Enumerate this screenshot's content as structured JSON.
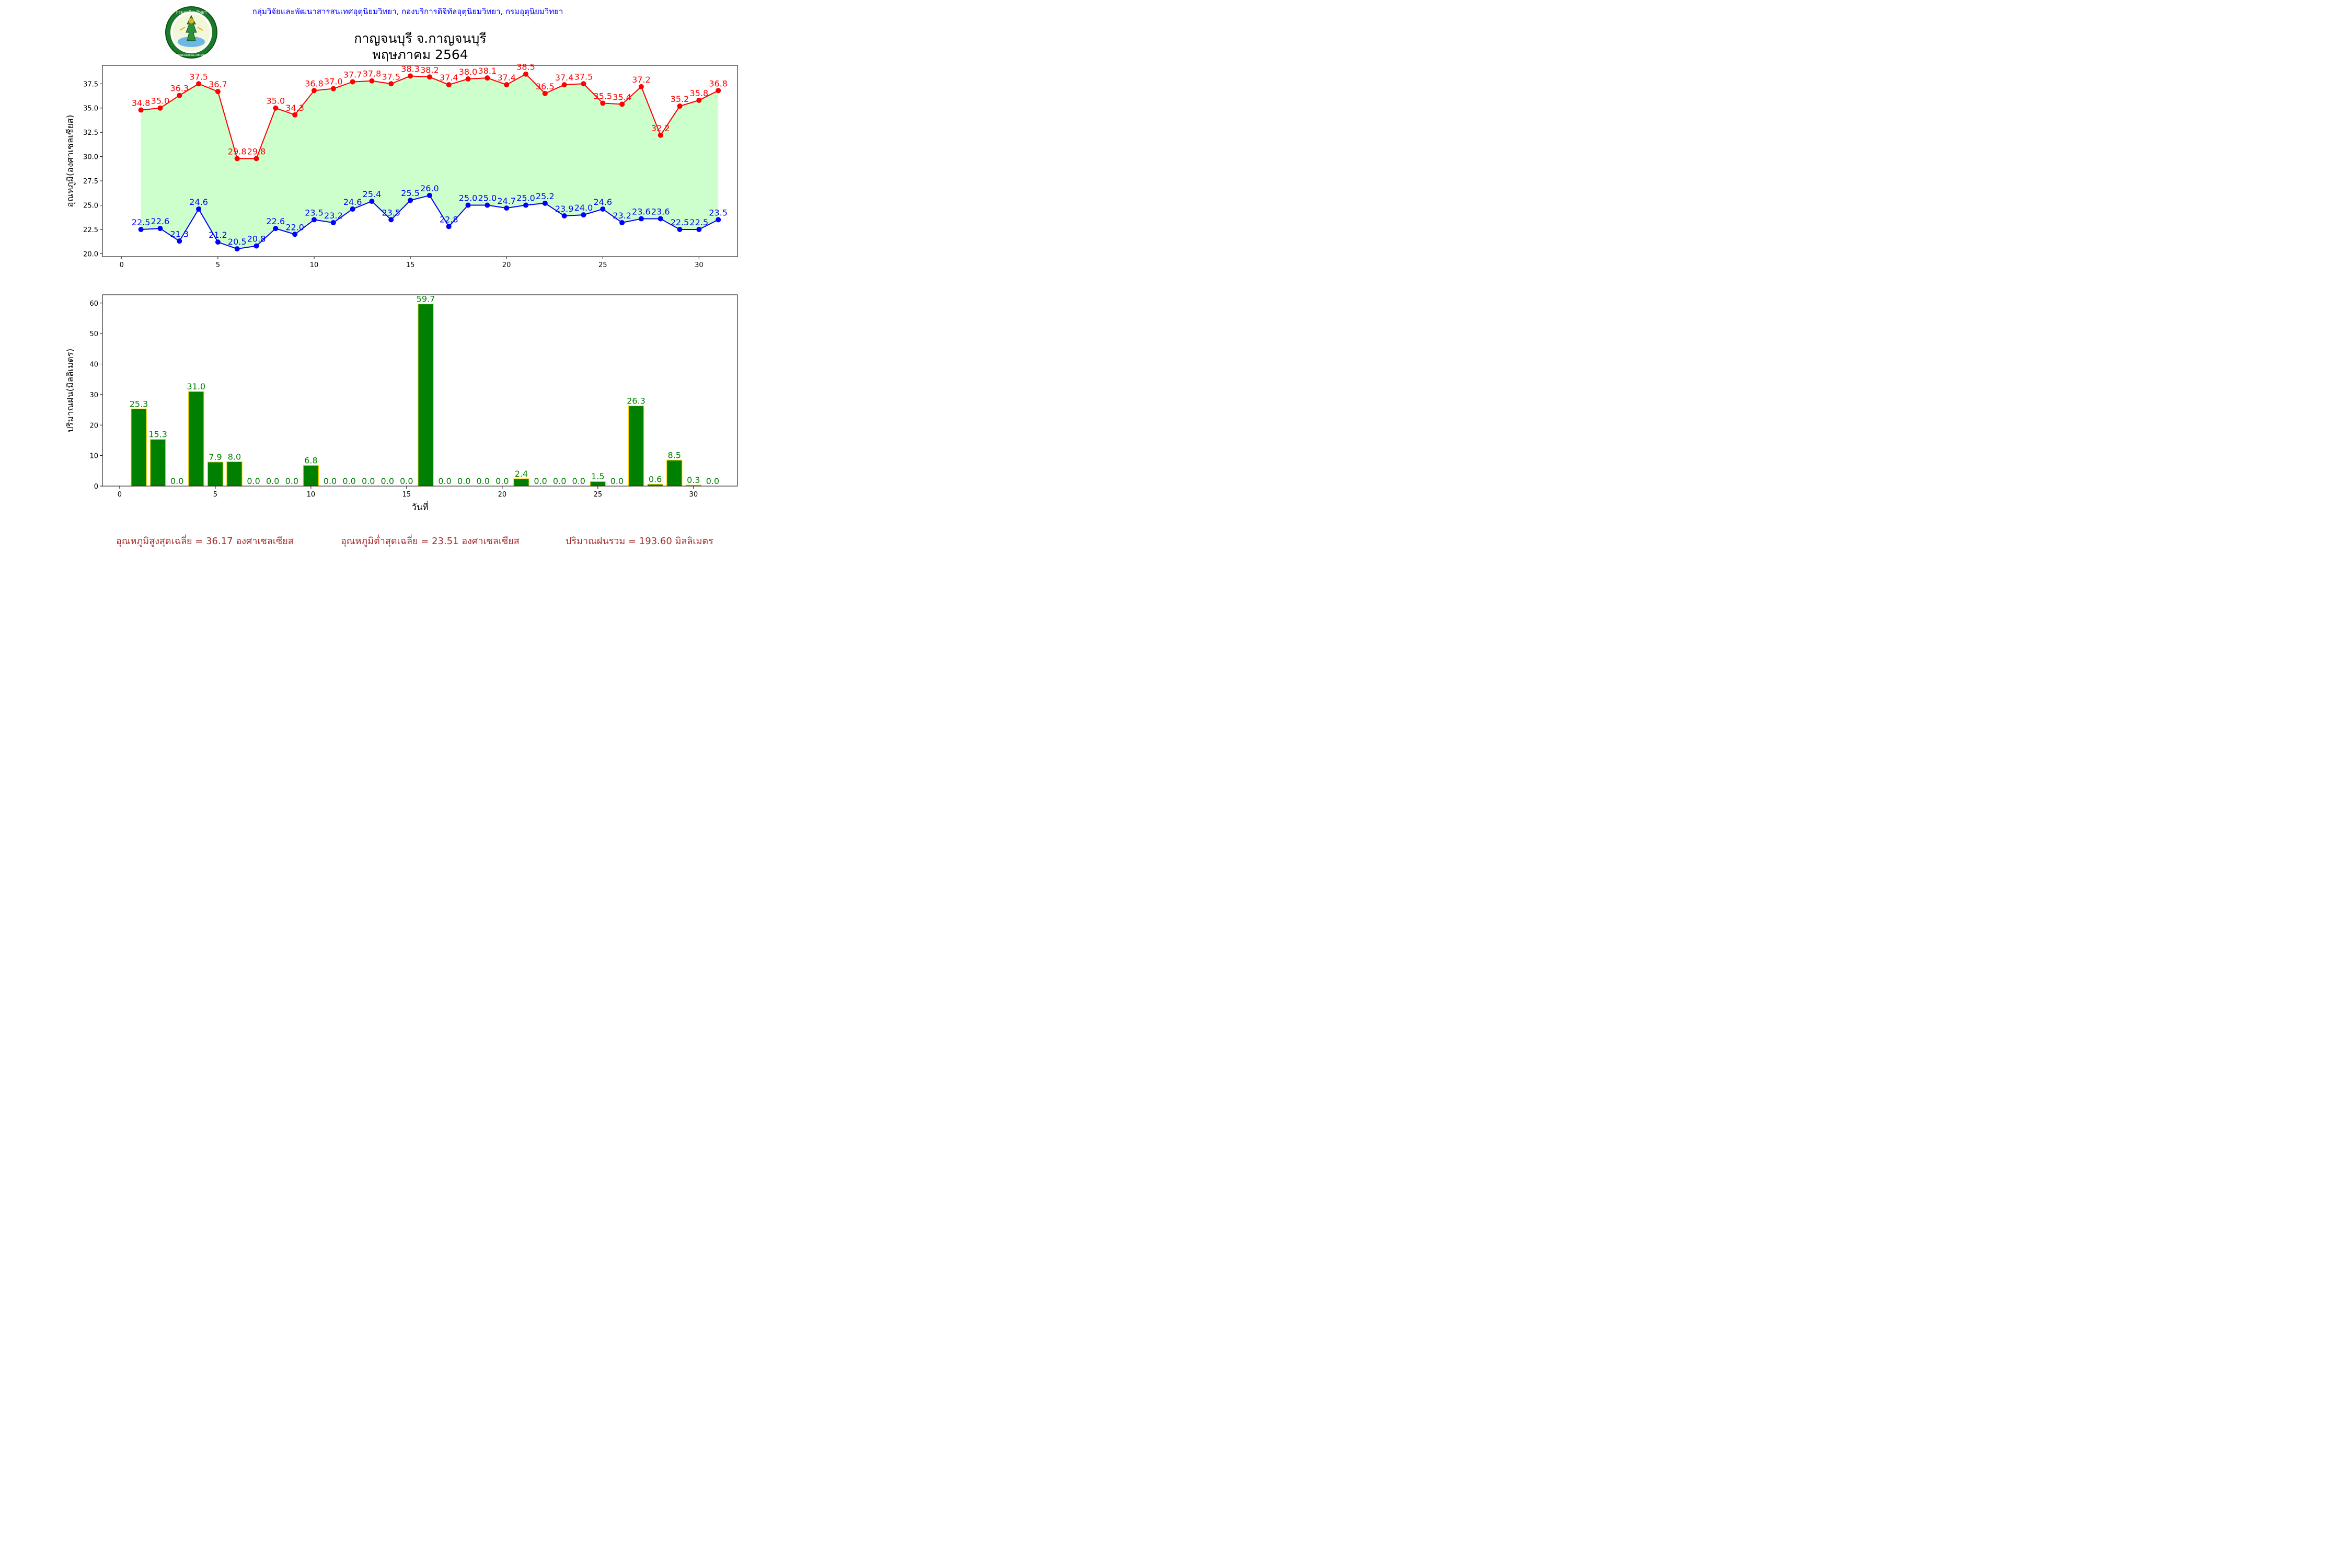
{
  "header": {
    "org_line": "กลุ่มวิจัยและพัฒนาสารสนเทศอุตุนิยมวิทยา, กองบริการดิจิทัลอุตุนิยมวิทยา, กรมอุตุนิยมวิทยา",
    "title_line1": "กาญจนบุรี จ.กาญจนบุรี",
    "title_line2": "พฤษภาคม 2564",
    "logo_top_text": "กรมอุตุนิยมวิทยา",
    "logo_bottom_text": "METEOROLOGICAL DEPARTMENT"
  },
  "summary": {
    "avg_max": "อุณหภูมิสูงสุดเฉลี่ย = 36.17 องศาเซลเซียส",
    "avg_min": "อุณหภูมิต่ำสุดเฉลี่ย = 23.51 องศาเซลเซียส",
    "total_rain": "ปริมาณฝนรวม = 193.60 มิลลิเมตร"
  },
  "chart_data": [
    {
      "type": "line",
      "x": [
        1,
        2,
        3,
        4,
        5,
        6,
        7,
        8,
        9,
        10,
        11,
        12,
        13,
        14,
        15,
        16,
        17,
        18,
        19,
        20,
        21,
        22,
        23,
        24,
        25,
        26,
        27,
        28,
        29,
        30,
        31
      ],
      "series": [
        {
          "values": [
            34.8,
            35.0,
            36.3,
            37.5,
            36.7,
            29.8,
            29.8,
            35.0,
            34.3,
            36.8,
            37.0,
            37.7,
            37.8,
            37.5,
            38.3,
            38.2,
            37.4,
            38.0,
            38.1,
            37.4,
            38.5,
            36.5,
            37.4,
            37.5,
            35.5,
            35.4,
            37.2,
            32.2,
            35.2,
            35.8,
            36.8
          ],
          "color": "#ff0000"
        },
        {
          "values": [
            22.5,
            22.6,
            21.3,
            24.6,
            21.2,
            20.5,
            20.8,
            22.6,
            22.0,
            23.5,
            23.2,
            24.6,
            25.4,
            23.5,
            25.5,
            26.0,
            22.8,
            25.0,
            25.0,
            24.7,
            25.0,
            25.2,
            23.9,
            24.0,
            24.6,
            23.2,
            23.6,
            23.6,
            22.5,
            22.5,
            23.5
          ],
          "color": "#0000ff"
        }
      ],
      "fill_color": "#ccffcc",
      "ylabel": "อุณหภูมิ(องศาเซลเซียส)",
      "xlim": [
        -1,
        32.0
      ],
      "ylim": [
        19.7,
        39.4
      ],
      "xticks": [
        0,
        5,
        10,
        15,
        20,
        25,
        30
      ],
      "yticks": [
        20.0,
        22.5,
        25.0,
        27.5,
        30.0,
        32.5,
        35.0,
        37.5
      ],
      "grid": false
    },
    {
      "type": "bar",
      "x": [
        1,
        2,
        3,
        4,
        5,
        6,
        7,
        8,
        9,
        10,
        11,
        12,
        13,
        14,
        15,
        16,
        17,
        18,
        19,
        20,
        21,
        22,
        23,
        24,
        25,
        26,
        27,
        28,
        29,
        30,
        31
      ],
      "values": [
        25.3,
        15.3,
        0.0,
        31.0,
        7.9,
        8.0,
        0.0,
        0.0,
        0.0,
        6.8,
        0.0,
        0.0,
        0.0,
        0.0,
        0.0,
        59.7,
        0.0,
        0.0,
        0.0,
        0.0,
        2.4,
        0.0,
        0.0,
        0.0,
        1.5,
        0.0,
        26.3,
        0.6,
        8.5,
        0.3,
        0.0
      ],
      "bar_color": "#008000",
      "edge_color": "#ffd700",
      "label_color": "#008000",
      "xlabel": "วันที่",
      "ylabel": "ปริมาณฝน(มิลลิเมตร)",
      "xlim": [
        -0.9,
        32.3
      ],
      "ylim": [
        0,
        62.7
      ],
      "xticks": [
        0,
        5,
        10,
        15,
        20,
        25,
        30
      ],
      "yticks": [
        0,
        10,
        20,
        30,
        40,
        50,
        60
      ],
      "grid": false
    }
  ]
}
